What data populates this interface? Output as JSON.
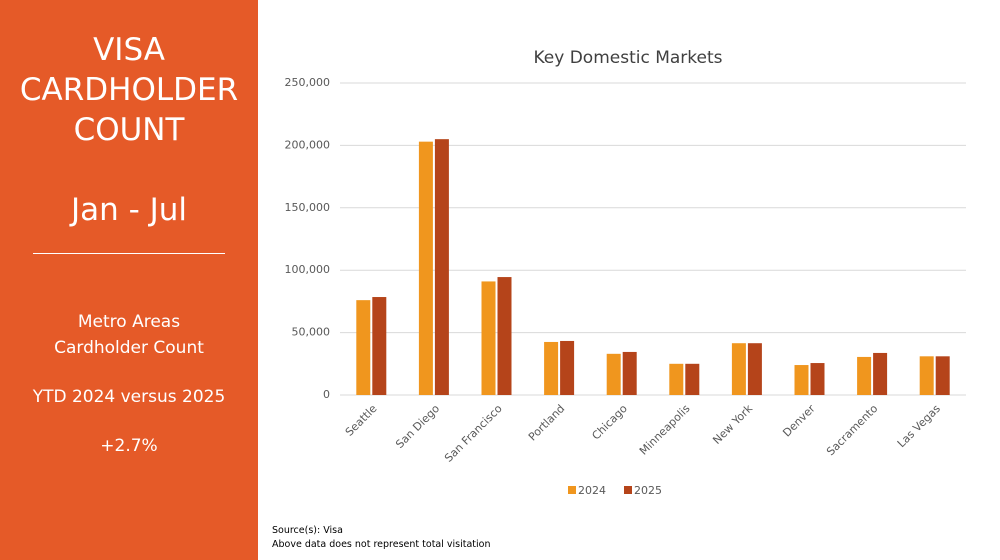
{
  "panel": {
    "title_lines": [
      "VISA",
      "CARDHOLDER",
      "COUNT"
    ],
    "period": "Jan - Jul",
    "subtitle_lines": [
      "Metro Areas",
      "Cardholder Count"
    ],
    "comparison": "YTD 2024 versus 2025",
    "change": "+2.7%"
  },
  "chart_data": {
    "type": "bar",
    "title": "Key Domestic Markets",
    "categories": [
      "Seattle",
      "San Diego",
      "San Francisco",
      "Portland",
      "Chicago",
      "Minneapolis",
      "New York",
      "Denver",
      "Sacramento",
      "Las Vegas"
    ],
    "series": [
      {
        "name": "2024",
        "color": "#f0961e",
        "values": [
          76000,
          203000,
          91000,
          42500,
          33000,
          25000,
          41500,
          24000,
          30500,
          31000
        ]
      },
      {
        "name": "2025",
        "color": "#b5441a",
        "values": [
          78500,
          205000,
          94500,
          43300,
          34500,
          25000,
          41500,
          25600,
          33700,
          31000
        ]
      }
    ],
    "ylim": [
      0,
      250000
    ],
    "yticks": [
      0,
      {
        "value": 50000,
        "label": "50,000"
      },
      {
        "value": 100000,
        "label": "100,000"
      },
      {
        "value": 150000,
        "label": "150,000"
      },
      {
        "value": 200000,
        "label": "200,000"
      },
      {
        "value": 250000,
        "label": "250,000"
      }
    ],
    "grid": true,
    "legend": "bottom"
  },
  "footer": {
    "source": "Source(s): Visa",
    "note": "Above data does not represent total visitation"
  }
}
